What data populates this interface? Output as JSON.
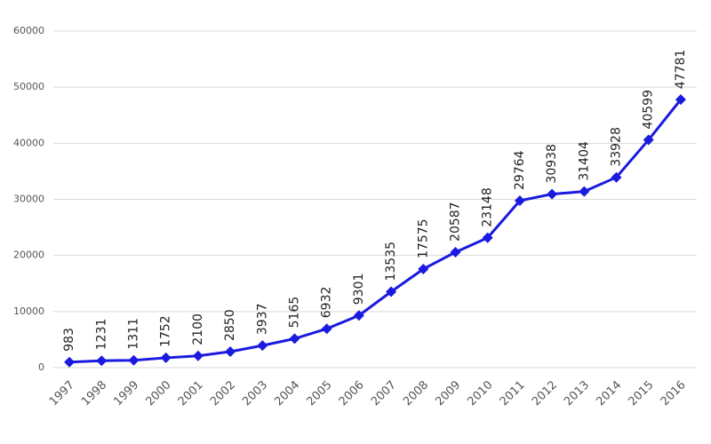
{
  "chart_data": {
    "type": "line",
    "categories": [
      "1997",
      "1998",
      "1999",
      "2000",
      "2001",
      "2002",
      "2003",
      "2004",
      "2005",
      "2006",
      "2007",
      "2008",
      "2009",
      "2010",
      "2011",
      "2012",
      "2013",
      "2014",
      "2015",
      "2016"
    ],
    "values": [
      983,
      1231,
      1311,
      1752,
      2100,
      2850,
      3937,
      5165,
      6932,
      9301,
      13535,
      17575,
      20587,
      23148,
      29764,
      30938,
      31404,
      33928,
      40599,
      47781
    ],
    "color": "#1a1ae0",
    "ylim": [
      0,
      60000
    ],
    "yticks": [
      0,
      10000,
      20000,
      30000,
      40000,
      50000,
      60000
    ],
    "grid": true
  }
}
